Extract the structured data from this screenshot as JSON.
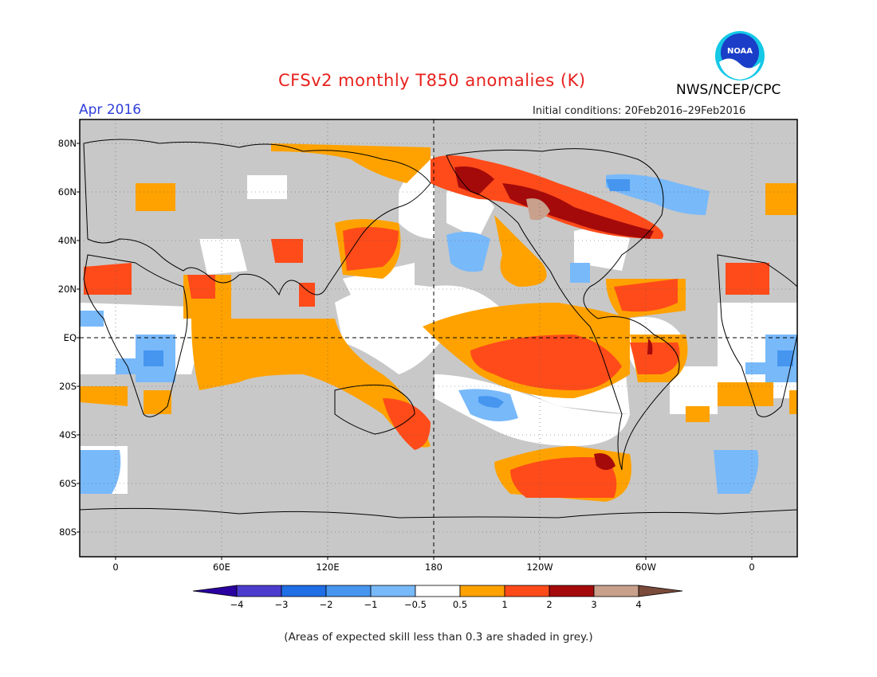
{
  "header": {
    "title": "CFSv2 monthly T850 anomalies (K)",
    "month": "Apr 2016",
    "initial_conditions": "Initial conditions: 20Feb2016–29Feb2016",
    "agency": "NWS/NCEP/CPC",
    "logo_text": "NOAA"
  },
  "map": {
    "projection": "equirectangular",
    "center_longitude": 180,
    "lat_labels": [
      "80N",
      "60N",
      "40N",
      "20N",
      "EQ",
      "20S",
      "40S",
      "60S",
      "80S"
    ],
    "lon_labels": [
      "0",
      "60E",
      "120E",
      "180",
      "120W",
      "60W",
      "0"
    ],
    "grid": "dotted",
    "colors": {
      "grey_low_skill": "#c8c8c8",
      "neutral": "#ffffff",
      "pos_0_5_1": "#ffa200",
      "pos_1_2": "#ff4b1a",
      "pos_2_3": "#a50a0a",
      "pos_3_4": "#c8a08c",
      "neg_0_5_1": "#78b9fa",
      "neg_1_2": "#4696f0"
    }
  },
  "colorbar": {
    "labels": [
      "−4",
      "−3",
      "−2",
      "−1",
      "−0.5",
      "0.5",
      "1",
      "2",
      "3",
      "4"
    ],
    "colors": [
      "#2a00a0",
      "#4b3ccd",
      "#1e6ee6",
      "#4696f0",
      "#78b9fa",
      "#ffffff",
      "#ffa200",
      "#ff4b1a",
      "#a50a0a",
      "#c8a08c",
      "#7a4a3a"
    ]
  },
  "footer": "(Areas of expected skill less than 0.3 are shaded in grey.)"
}
